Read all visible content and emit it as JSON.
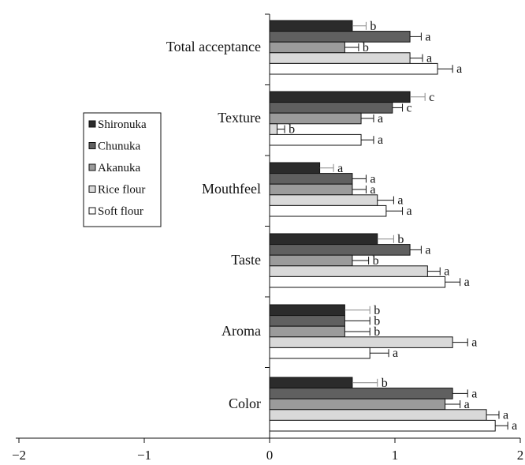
{
  "chart_data": {
    "type": "bar",
    "orientation": "horizontal",
    "categories": [
      "Total acceptance",
      "Texture",
      "Mouthfeel",
      "Taste",
      "Aroma",
      "Color"
    ],
    "series": [
      {
        "name": "Shironuka",
        "color": "#2b2b2b",
        "values": [
          0.66,
          1.12,
          0.4,
          0.86,
          0.6,
          0.66
        ],
        "errors": [
          0.11,
          0.12,
          0.11,
          0.13,
          0.2,
          0.2
        ],
        "labels": [
          "b",
          "c",
          "a",
          "b",
          "b",
          "b"
        ]
      },
      {
        "name": "Chunuka",
        "color": "#606060",
        "values": [
          1.12,
          0.98,
          0.66,
          1.12,
          0.6,
          1.46
        ],
        "errors": [
          0.09,
          0.08,
          0.11,
          0.09,
          0.2,
          0.12
        ],
        "labels": [
          "a",
          "c",
          "a",
          "a",
          "b",
          "a"
        ]
      },
      {
        "name": "Akanuka",
        "color": "#9b9b9b",
        "values": [
          0.6,
          0.73,
          0.66,
          0.66,
          0.6,
          1.4
        ],
        "errors": [
          0.11,
          0.1,
          0.11,
          0.13,
          0.2,
          0.12
        ],
        "labels": [
          "b",
          "a",
          "a",
          "b",
          "b",
          "a"
        ]
      },
      {
        "name": "Rice flour",
        "color": "#d9d9d9",
        "values": [
          1.12,
          0.06,
          0.86,
          1.26,
          1.46,
          1.73
        ],
        "errors": [
          0.1,
          0.06,
          0.13,
          0.1,
          0.12,
          0.1
        ],
        "labels": [
          "a",
          "b",
          "a",
          "a",
          "a",
          "a"
        ]
      },
      {
        "name": "Soft flour",
        "color": "#ffffff",
        "values": [
          1.34,
          0.73,
          0.93,
          1.4,
          0.8,
          1.8
        ],
        "errors": [
          0.12,
          0.1,
          0.13,
          0.12,
          0.15,
          0.1
        ],
        "labels": [
          "a",
          "a",
          "a",
          "a",
          "a",
          "a"
        ]
      }
    ],
    "xticks": [
      "−2",
      "−1",
      "0",
      "1",
      "2"
    ],
    "xlim": [
      -2,
      2
    ],
    "legend_position": "left-middle",
    "grid": false
  }
}
